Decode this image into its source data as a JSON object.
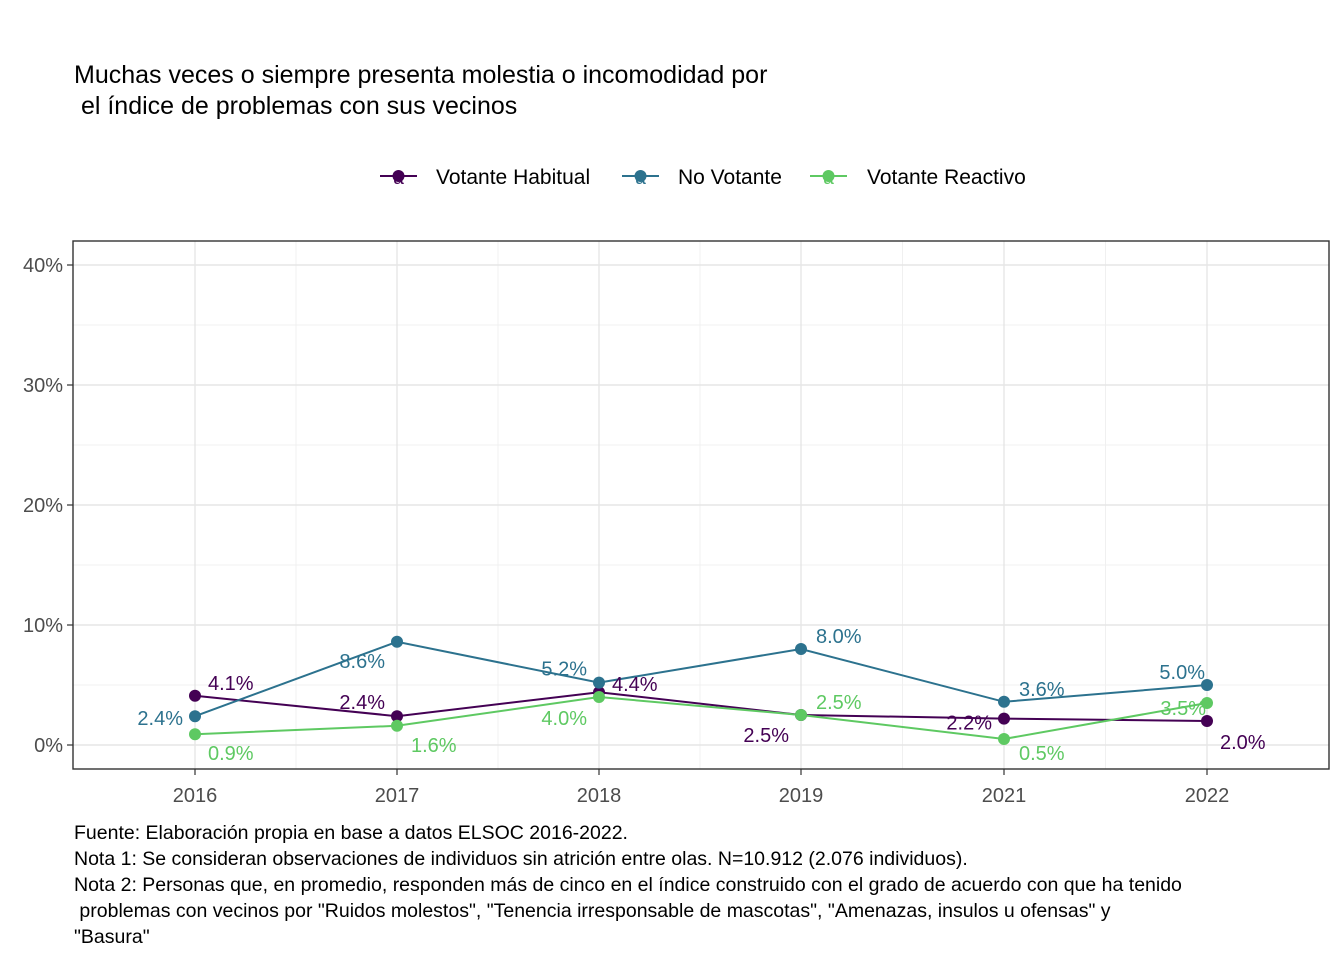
{
  "title": "Muchas veces o siempre presenta molestia o incomodidad por\n el índice de problemas con sus vecinos",
  "caption": "Fuente: Elaboración propia en base a datos ELSOC 2016-2022.\nNota 1: Se consideran observaciones de individuos sin atrición entre olas. N=10.912 (2.076 individuos).\nNota 2: Personas que, en promedio, responden más de cinco en el índice construido con el grado de acuerdo con que ha tenido\n problemas con vecinos por \"Ruidos molestos\", \"Tenencia irresponsable de mascotas\", \"Amenazas, insulos u ofensas\" y\n\"Basura\"",
  "chart_data": {
    "type": "line",
    "categories": [
      "2016",
      "2017",
      "2018",
      "2019",
      "2021",
      "2022"
    ],
    "y_ticks": [
      0,
      10,
      20,
      30,
      40
    ],
    "y_tick_labels": [
      "0%",
      "10%",
      "20%",
      "30%",
      "40%"
    ],
    "ylim": [
      -2,
      42
    ],
    "grid": true,
    "legend_position": "top",
    "legend_key_glyph": "a",
    "series": [
      {
        "name": "Votante Habitual",
        "color": "#440154",
        "values": [
          4.1,
          2.4,
          4.4,
          2.5,
          2.2,
          2.0
        ],
        "labels": [
          "4.1%",
          "2.4%",
          "4.4%",
          "2.5%",
          "2.2%",
          "2.0%"
        ]
      },
      {
        "name": "No Votante",
        "color": "#2c728e",
        "values": [
          2.4,
          8.6,
          5.2,
          8.0,
          3.6,
          5.0
        ],
        "labels": [
          "2.4%",
          "8.6%",
          "5.2%",
          "8.0%",
          "3.6%",
          "5.0%"
        ]
      },
      {
        "name": "Votante Reactivo",
        "color": "#5ec962",
        "values": [
          0.9,
          1.6,
          4.0,
          2.5,
          0.5,
          3.5
        ],
        "labels": [
          "0.9%",
          "1.6%",
          "4.0%",
          "2.5%",
          "0.5%",
          "3.5%"
        ]
      }
    ]
  }
}
